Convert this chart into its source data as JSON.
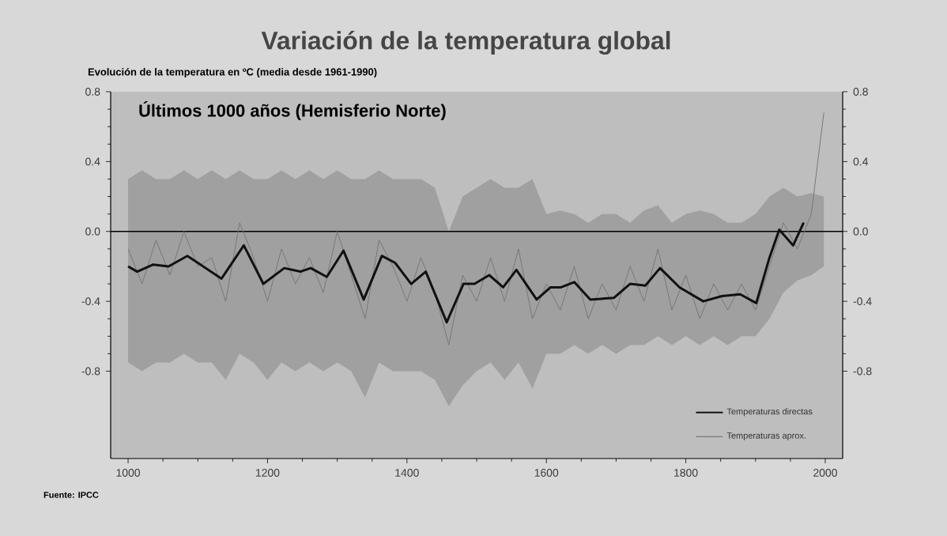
{
  "chart_data": {
    "type": "line",
    "title": "Variación de la temperatura global",
    "subtitle": "Evolución de la temperatura en ºC (media desde 1961-1990)",
    "annotations": [
      "Últimos 1000 años (Hemisferio Norte)",
      "Fuente: IPCC"
    ],
    "xlim": [
      975,
      2025
    ],
    "xticks": [
      1000,
      1200,
      1400,
      1600,
      1800,
      2000
    ],
    "ylim": [
      -1.3,
      0.8
    ],
    "yticks": [
      -0.8,
      -0.4,
      {
        "value": 0,
        "label": "0.0"
      },
      0.4,
      0.8
    ],
    "y2lim": [
      -1.3,
      0.8
    ],
    "y2ticks": [
      -0.8,
      -0.4,
      {
        "value": 0,
        "label": "0.0"
      },
      0.4,
      0.8
    ],
    "ref_lines": [
      {
        "axis": "y",
        "value": 0,
        "color": "#000000"
      }
    ],
    "legend": "bottom right",
    "series": [
      {
        "name": "Temperaturas directas",
        "color": "#111111",
        "x": [
          1000,
          1013,
          1036,
          1058,
          1085,
          1134,
          1166,
          1194,
          1224,
          1247,
          1262,
          1285,
          1309,
          1338,
          1364,
          1383,
          1406,
          1427,
          1457,
          1481,
          1497,
          1518,
          1538,
          1557,
          1586,
          1606,
          1621,
          1640,
          1663,
          1697,
          1720,
          1742,
          1763,
          1791,
          1825,
          1852,
          1878,
          1901,
          1920,
          1934,
          1954,
          1969
        ],
        "values": [
          -0.2,
          -0.23,
          -0.19,
          -0.2,
          -0.14,
          -0.27,
          -0.08,
          -0.3,
          -0.21,
          -0.23,
          -0.21,
          -0.26,
          -0.11,
          -0.39,
          -0.14,
          -0.18,
          -0.3,
          -0.23,
          -0.52,
          -0.3,
          -0.3,
          -0.25,
          -0.32,
          -0.22,
          -0.39,
          -0.32,
          -0.32,
          -0.29,
          -0.39,
          -0.38,
          -0.3,
          -0.31,
          -0.21,
          -0.32,
          -0.4,
          -0.37,
          -0.36,
          -0.41,
          -0.15,
          0.01,
          -0.08,
          0.05
        ]
      },
      {
        "name": "Temperaturas aprox.",
        "color": "#777777",
        "x": [
          1000,
          1020,
          1040,
          1060,
          1080,
          1100,
          1120,
          1140,
          1160,
          1180,
          1200,
          1220,
          1240,
          1260,
          1280,
          1300,
          1320,
          1340,
          1360,
          1380,
          1400,
          1420,
          1440,
          1460,
          1480,
          1500,
          1520,
          1540,
          1560,
          1580,
          1600,
          1620,
          1640,
          1660,
          1680,
          1700,
          1720,
          1740,
          1760,
          1780,
          1800,
          1820,
          1840,
          1860,
          1880,
          1900,
          1920,
          1940,
          1960,
          1980,
          1998
        ],
        "values": [
          -0.1,
          -0.3,
          -0.05,
          -0.25,
          0.0,
          -0.2,
          -0.15,
          -0.4,
          0.05,
          -0.15,
          -0.4,
          -0.1,
          -0.3,
          -0.15,
          -0.35,
          0.0,
          -0.25,
          -0.5,
          -0.05,
          -0.2,
          -0.4,
          -0.15,
          -0.35,
          -0.65,
          -0.25,
          -0.4,
          -0.15,
          -0.4,
          -0.1,
          -0.5,
          -0.3,
          -0.45,
          -0.2,
          -0.5,
          -0.3,
          -0.45,
          -0.2,
          -0.4,
          -0.1,
          -0.45,
          -0.25,
          -0.5,
          -0.3,
          -0.45,
          -0.3,
          -0.45,
          -0.2,
          0.05,
          -0.1,
          0.1,
          0.68
        ],
        "upper": [
          0.3,
          0.35,
          0.3,
          0.3,
          0.35,
          0.3,
          0.35,
          0.3,
          0.35,
          0.3,
          0.3,
          0.35,
          0.3,
          0.35,
          0.3,
          0.35,
          0.3,
          0.3,
          0.35,
          0.3,
          0.3,
          0.3,
          0.25,
          0.0,
          0.2,
          0.25,
          0.3,
          0.25,
          0.25,
          0.3,
          0.1,
          0.12,
          0.1,
          0.05,
          0.1,
          0.1,
          0.05,
          0.12,
          0.15,
          0.05,
          0.1,
          0.12,
          0.1,
          0.05,
          0.05,
          0.1,
          0.2,
          0.25,
          0.2,
          0.22,
          0.2
        ],
        "lower": [
          -0.75,
          -0.8,
          -0.75,
          -0.75,
          -0.7,
          -0.75,
          -0.75,
          -0.85,
          -0.7,
          -0.75,
          -0.85,
          -0.75,
          -0.8,
          -0.75,
          -0.8,
          -0.75,
          -0.8,
          -0.95,
          -0.75,
          -0.8,
          -0.8,
          -0.8,
          -0.85,
          -1.0,
          -0.88,
          -0.8,
          -0.75,
          -0.85,
          -0.75,
          -0.9,
          -0.7,
          -0.7,
          -0.65,
          -0.7,
          -0.65,
          -0.7,
          -0.65,
          -0.65,
          -0.6,
          -0.65,
          -0.6,
          -0.65,
          -0.6,
          -0.65,
          -0.6,
          -0.6,
          -0.5,
          -0.35,
          -0.28,
          -0.25,
          -0.2
        ]
      }
    ]
  }
}
